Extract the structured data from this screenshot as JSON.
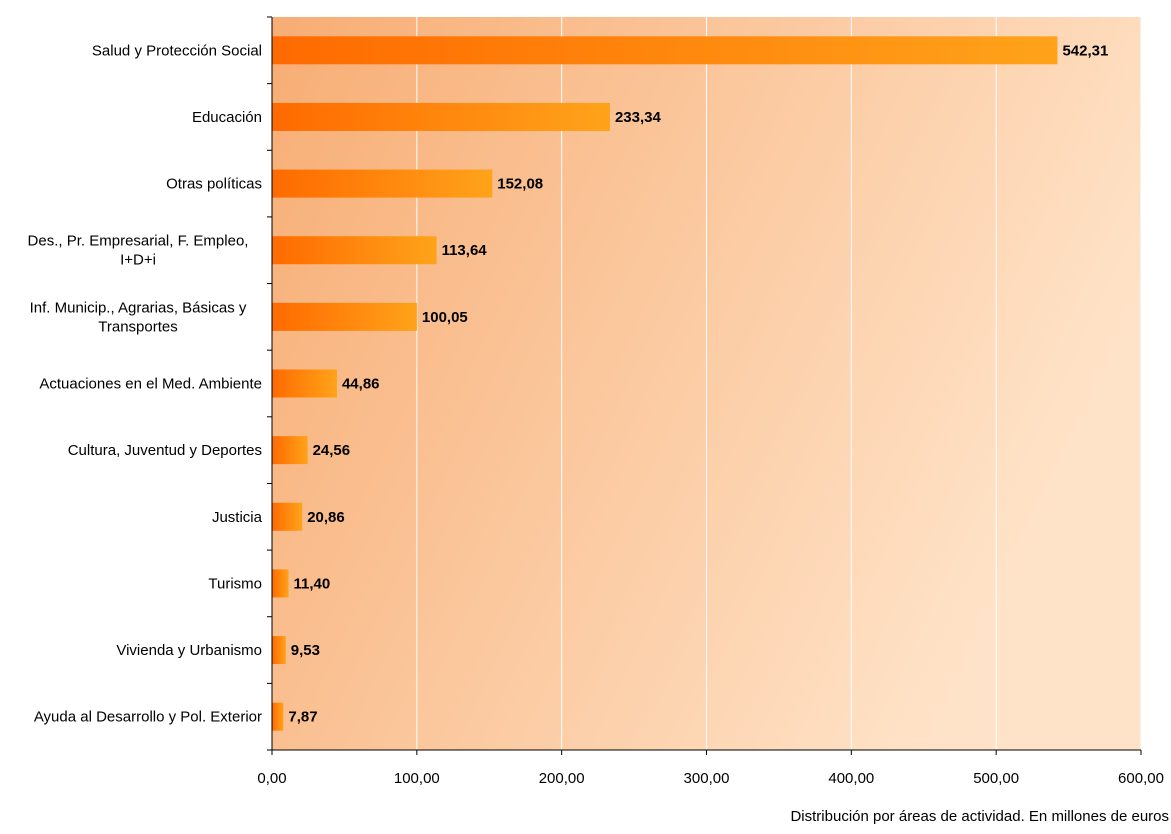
{
  "chart_data": {
    "type": "bar",
    "orientation": "horizontal",
    "categories": [
      "Salud y Protección Social",
      "Educación",
      "Otras políticas",
      "Des., Pr. Empresarial, F. Empleo, I+D+i",
      "Inf. Municip., Agrarias, Básicas y Transportes",
      "Actuaciones en el Med. Ambiente",
      "Cultura, Juventud y Deportes",
      "Justicia",
      "Turismo",
      "Vivienda y Urbanismo",
      "Ayuda al Desarrollo y Pol. Exterior"
    ],
    "category_lines": [
      [
        "Salud y Protección Social"
      ],
      [
        "Educación"
      ],
      [
        "Otras políticas"
      ],
      [
        "Des., Pr. Empresarial, F. Empleo,",
        "I+D+i"
      ],
      [
        "Inf. Municip., Agrarias, Básicas y",
        "Transportes"
      ],
      [
        "Actuaciones en el Med. Ambiente"
      ],
      [
        "Cultura, Juventud y Deportes"
      ],
      [
        "Justicia"
      ],
      [
        "Turismo"
      ],
      [
        "Vivienda y Urbanismo"
      ],
      [
        "Ayuda al Desarrollo y Pol. Exterior"
      ]
    ],
    "values": [
      542.31,
      233.34,
      152.08,
      113.64,
      100.05,
      44.86,
      24.56,
      20.86,
      11.4,
      9.53,
      7.87
    ],
    "value_labels": [
      "542,31",
      "233,34",
      "152,08",
      "113,64",
      "100,05",
      "44,86",
      "24,56",
      "20,86",
      "11,40",
      "9,53",
      "7,87"
    ],
    "xlim": [
      0,
      600
    ],
    "xticks": [
      0,
      100,
      200,
      300,
      400,
      500,
      600
    ],
    "xtick_labels": [
      "0,00",
      "100,00",
      "200,00",
      "300,00",
      "400,00",
      "500,00",
      "600,00"
    ],
    "xlabel": "Distribución por áreas de actividad. En millones de euros",
    "title": "",
    "grid": "vertical",
    "colors": {
      "bar_start": "#ff6a00",
      "bar_end": "#ffa31a",
      "plot_bg_start": "#f7ad74",
      "plot_bg_end": "#ffe3c8",
      "gridline": "#ffffff",
      "axis": "#000000"
    }
  }
}
